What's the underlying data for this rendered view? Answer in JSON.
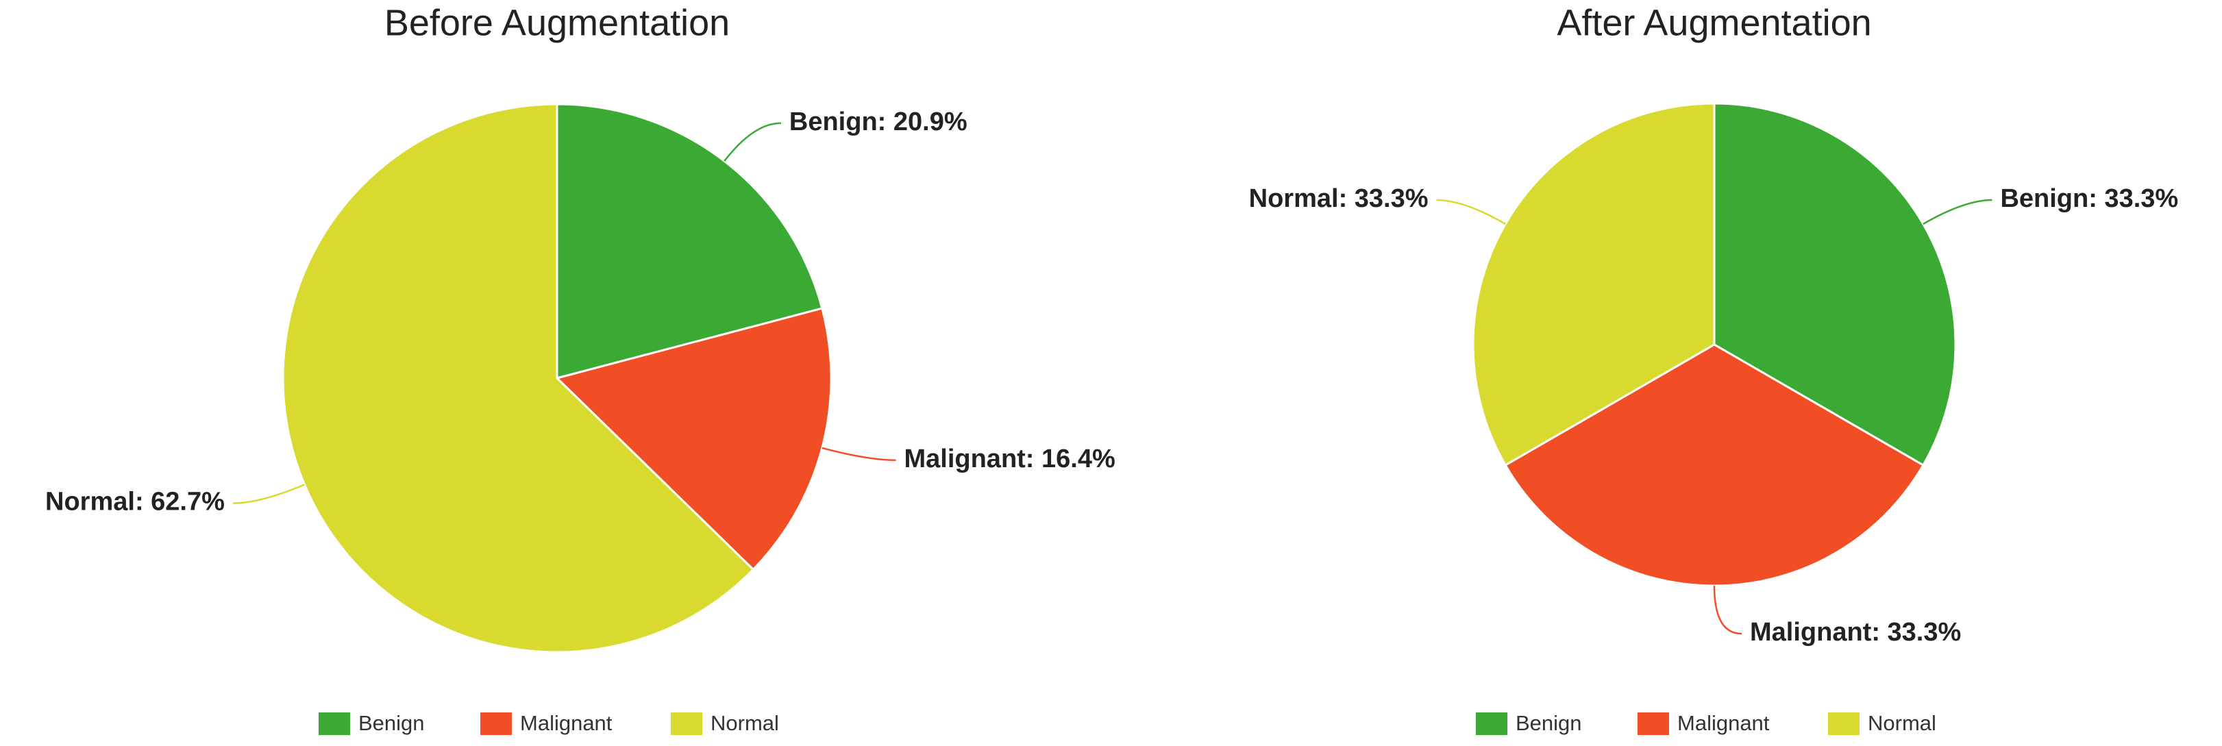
{
  "chart_data": [
    {
      "type": "pie",
      "title": "Before Augmentation",
      "categories": [
        "Benign",
        "Malignant",
        "Normal"
      ],
      "values": [
        20.9,
        16.4,
        62.7
      ],
      "value_labels": [
        "Benign: 20.9%",
        "Malignant: 16.4%",
        "Normal: 62.7%"
      ],
      "colors": [
        "#3aaa35",
        "#f24e26",
        "#d9da2f"
      ],
      "legend": "bottom"
    },
    {
      "type": "pie",
      "title": "After Augmentation",
      "categories": [
        "Benign",
        "Malignant",
        "Normal"
      ],
      "values": [
        33.3,
        33.3,
        33.3
      ],
      "value_labels": [
        "Benign: 33.3%",
        "Malignant: 33.3%",
        "Normal: 33.3%"
      ],
      "colors": [
        "#3aaa35",
        "#f24e26",
        "#d9da2f"
      ],
      "legend": "bottom"
    }
  ]
}
